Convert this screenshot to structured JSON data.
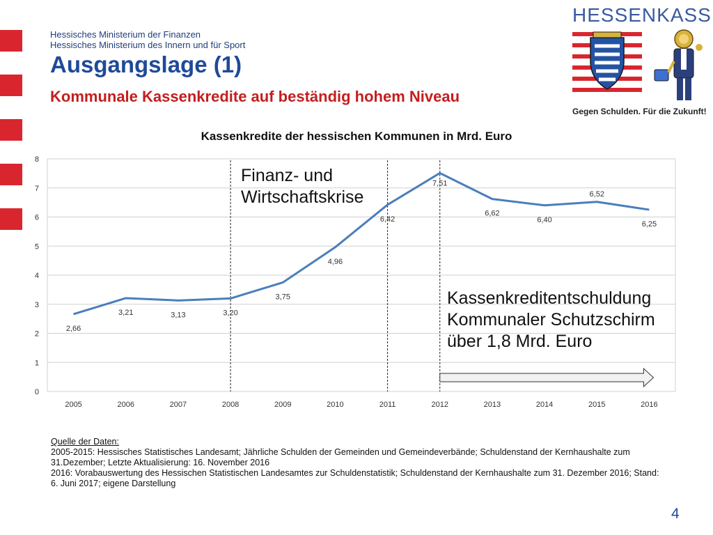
{
  "header": {
    "ministry_line1": "Hessisches Ministerium der Finanzen",
    "ministry_line2": "Hessisches Ministerium des Innern und für Sport",
    "title": "Ausgangslage (1)",
    "subtitle": "Kommunale Kassenkredite auf beständig hohem Niveau"
  },
  "brand": {
    "name": "HESSENKASSE",
    "slogan": "Gegen Schulden. Für die Zukunft!",
    "logo_icon": "hessen-coat-of-arms-icon",
    "mascot_icon": "lion-mascot-icon"
  },
  "colors": {
    "accent_red": "#d9262e",
    "title_blue": "#1f4a99",
    "subtitle_red": "#c41e1e",
    "line_blue": "#4a7ebb"
  },
  "chart_data": {
    "type": "line",
    "title": "Kassenkredite der hessischen Kommunen in Mrd. Euro",
    "categories": [
      "2005",
      "2006",
      "2007",
      "2008",
      "2009",
      "2010",
      "2011",
      "2012",
      "2013",
      "2014",
      "2015",
      "2016"
    ],
    "values": [
      2.66,
      3.21,
      3.13,
      3.2,
      3.75,
      4.96,
      6.42,
      7.51,
      6.62,
      6.4,
      6.52,
      6.25
    ],
    "data_labels": [
      "2,66",
      "3,21",
      "3,13",
      "3,20",
      "3,75",
      "4,96",
      "6,42",
      "7,51",
      "6,62",
      "6,40",
      "6,52",
      "6,25"
    ],
    "y_ticks": [
      "0",
      "1",
      "2",
      "3",
      "4",
      "5",
      "6",
      "7",
      "8"
    ],
    "ylim": [
      0,
      8
    ],
    "grid": true,
    "legend": "none",
    "marker_years": [
      "2008",
      "2011",
      "2012"
    ],
    "arrow_from": "2012",
    "arrow_to": "2016",
    "annotations": {
      "krise_line1": "Finanz- und",
      "krise_line2": "Wirtschaftskrise",
      "schirm_line1": "Kassenkreditentschuldung",
      "schirm_line2": "Kommunaler Schutzschirm",
      "schirm_line3": "über 1,8 Mrd. Euro"
    }
  },
  "source": {
    "heading": "Quelle der Daten:",
    "line1": "2005-2015: Hessisches Statistisches Landesamt; Jährliche Schulden der Gemeinden und Gemeindeverbände; Schuldenstand der Kernhaushalte zum 31.Dezember; Letzte Aktualisierung: 16. November 2016",
    "line2": "2016: Vorabauswertung des Hessischen Statistischen Landesamtes zur Schuldenstatistik; Schuldenstand der Kernhaushalte zum 31. Dezember 2016; Stand: 6. Juni 2017; eigene Darstellung"
  },
  "page_number": "4"
}
